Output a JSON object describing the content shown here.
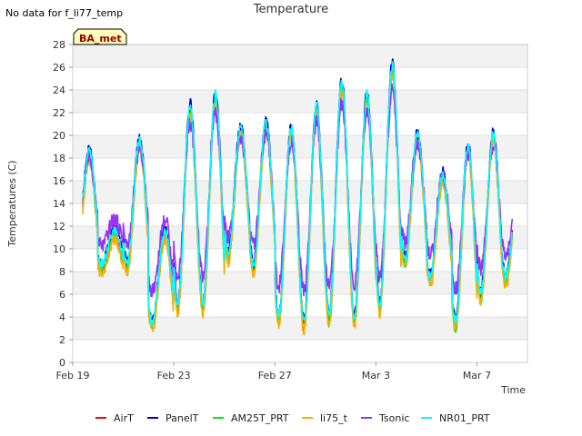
{
  "header": {
    "no_data_text": "No data for f_li77_temp"
  },
  "chart_data": {
    "type": "line",
    "title": "Temperature",
    "xlabel": "Time",
    "ylabel": "Temperatures (C)",
    "ylim": [
      0,
      28
    ],
    "yticks": [
      0,
      2,
      4,
      6,
      8,
      10,
      12,
      14,
      16,
      18,
      20,
      22,
      24,
      26,
      28
    ],
    "xlim": [
      "Feb 19",
      "Mar 9"
    ],
    "xticks": [
      {
        "label": "Feb 19",
        "day": 0
      },
      {
        "label": "Feb 23",
        "day": 4
      },
      {
        "label": "Feb 27",
        "day": 8
      },
      {
        "label": "Mar 3",
        "day": 12
      },
      {
        "label": "Mar 7",
        "day": 16
      }
    ],
    "grid": "horizontal bands",
    "badge": "BA_met",
    "legend_position": "bottom",
    "x_day_start": 0.4,
    "x_day_end": 17.4,
    "daily_min_max": [
      [
        9.0,
        18.0
      ],
      [
        8.0,
        11.0
      ],
      [
        8.0,
        19.0
      ],
      [
        3.0,
        11.0
      ],
      [
        4.5,
        22.0
      ],
      [
        4.5,
        23.0
      ],
      [
        9.0,
        20.0
      ],
      [
        8.0,
        20.5
      ],
      [
        3.5,
        20.0
      ],
      [
        3.0,
        22.0
      ],
      [
        3.5,
        24.0
      ],
      [
        3.5,
        23.0
      ],
      [
        4.5,
        25.5
      ],
      [
        8.5,
        19.5
      ],
      [
        7.0,
        16.0
      ],
      [
        3.0,
        18.5
      ],
      [
        5.5,
        19.5
      ],
      [
        7.0,
        15.0
      ],
      [
        5.0,
        18.0
      ],
      [
        2.0,
        19.0
      ]
    ],
    "series": [
      {
        "name": "AirT",
        "color": "#ff0000",
        "offset": 0.4
      },
      {
        "name": "PanelT",
        "color": "#0000cc",
        "offset": 0.8
      },
      {
        "name": "AM25T_PRT",
        "color": "#00ee00",
        "offset": 0.0
      },
      {
        "name": "li75_t",
        "color": "#ffaa00",
        "offset": -0.2
      },
      {
        "name": "Tsonic",
        "color": "#9933ee",
        "offset": 0.0
      },
      {
        "name": "NR01_PRT",
        "color": "#00ffff",
        "offset": 0.6
      }
    ]
  }
}
